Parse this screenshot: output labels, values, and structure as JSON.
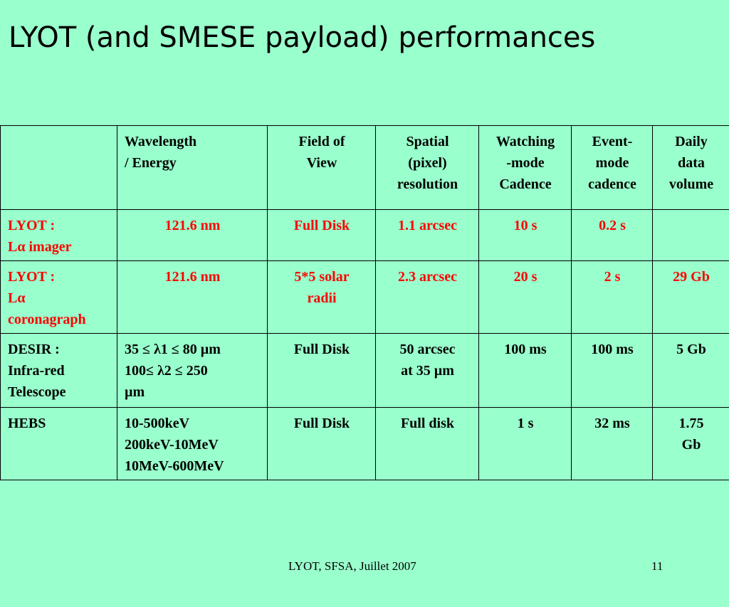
{
  "title": "LYOT (and SMESE payload) performances",
  "table": {
    "headers": [
      "",
      "Wavelength\n/ Energy",
      "Field of\nView",
      "Spatial\n(pixel)\nresolution",
      "Watching\n-mode\nCadence",
      "Event-\nmode\ncadence",
      "Daily\ndata\nvolume"
    ],
    "rows": [
      [
        "LYOT :\nLα imager",
        "121.6 nm",
        "Full Disk",
        "1.1 arcsec",
        "10 s",
        "0.2 s",
        ""
      ],
      [
        "LYOT :\nLα\ncoronagraph",
        "121.6 nm",
        "5*5 solar\nradii",
        "2.3 arcsec",
        "20 s",
        "2 s",
        "29 Gb"
      ],
      [
        "DESIR :\nInfra-red\nTelescope",
        "35 ≤ λ1 ≤ 80 µm\n100≤ λ2 ≤ 250\nµm",
        "Full Disk",
        "50 arcsec\nat 35 µm",
        "100 ms",
        "100 ms",
        "5 Gb"
      ],
      [
        "HEBS",
        "10-500keV\n200keV-10MeV\n10MeV-600MeV",
        "Full Disk",
        "Full disk",
        "1 s",
        "32 ms",
        "1.75\nGb"
      ]
    ]
  },
  "footer": {
    "center_text": "LYOT, SFSA, Juillet 2007",
    "page_number": "11"
  },
  "colors": {
    "background": "#99ffcc",
    "highlight_text": "#ff0000"
  }
}
